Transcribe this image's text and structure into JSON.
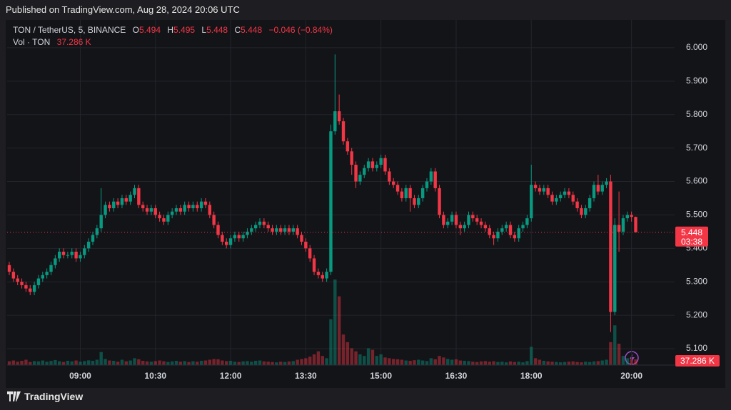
{
  "header": {
    "published": "Published on TradingView.com, Aug 28, 2024 20:06 UTC",
    "footer": "TradingView"
  },
  "chart_data": {
    "type": "candlestick",
    "symbol": "TON / TetherUS, 5, BINANCE",
    "legend_labels": {
      "open": "O",
      "high": "H",
      "low": "L",
      "close": "C"
    },
    "change": "−0.046 (−0.84%)",
    "volume_name": "Vol · TON",
    "volume_last_label": "37.286 K",
    "countdown": "03:38",
    "up_color": "#089981",
    "down_color": "#f23645",
    "grid": true,
    "ylim": [
      5.051,
      6.083
    ],
    "yticks": [
      {
        "value": 5.1,
        "label": "5.100"
      },
      {
        "value": 5.2,
        "label": "5.200"
      },
      {
        "value": 5.3,
        "label": "5.300"
      },
      {
        "value": 5.4,
        "label": "5.400"
      },
      {
        "value": 5.5,
        "label": "5.500"
      },
      {
        "value": 5.6,
        "label": "5.600"
      },
      {
        "value": 5.7,
        "label": "5.700"
      },
      {
        "value": 5.8,
        "label": "5.800"
      },
      {
        "value": 5.9,
        "label": "5.900"
      },
      {
        "value": 6.0,
        "label": "6.000"
      }
    ],
    "categories": [
      null,
      null,
      null,
      null,
      null,
      null,
      null,
      null,
      null,
      null,
      null,
      null,
      null,
      null,
      null,
      null,
      null,
      "09:00",
      null,
      null,
      null,
      null,
      null,
      null,
      null,
      null,
      null,
      null,
      null,
      null,
      null,
      null,
      null,
      null,
      null,
      "10:30",
      null,
      null,
      null,
      null,
      null,
      null,
      null,
      null,
      null,
      null,
      null,
      null,
      null,
      null,
      null,
      null,
      null,
      "12:00",
      null,
      null,
      null,
      null,
      null,
      null,
      null,
      null,
      null,
      null,
      null,
      null,
      null,
      null,
      null,
      null,
      null,
      "13:30",
      null,
      null,
      null,
      null,
      null,
      null,
      null,
      null,
      null,
      null,
      null,
      null,
      null,
      null,
      null,
      null,
      null,
      "15:00",
      null,
      null,
      null,
      null,
      null,
      null,
      null,
      null,
      null,
      null,
      null,
      null,
      null,
      null,
      null,
      null,
      null,
      "16:30",
      null,
      null,
      null,
      null,
      null,
      null,
      null,
      null,
      null,
      null,
      null,
      null,
      null,
      null,
      null,
      null,
      null,
      "18:00",
      null,
      null,
      null,
      null,
      null,
      null,
      null,
      null,
      null,
      null,
      null,
      null,
      null,
      null,
      null,
      null,
      null,
      null,
      null,
      null,
      null,
      null,
      null,
      "20:00",
      null
    ],
    "open": [
      5.35,
      5.33,
      5.31,
      5.3,
      5.29,
      5.28,
      5.27,
      5.29,
      5.31,
      5.32,
      5.33,
      5.35,
      5.37,
      5.39,
      5.38,
      5.38,
      5.39,
      5.37,
      5.38,
      5.4,
      5.42,
      5.44,
      5.46,
      5.5,
      5.53,
      5.52,
      5.54,
      5.53,
      5.55,
      5.54,
      5.56,
      5.58,
      5.53,
      5.52,
      5.51,
      5.52,
      5.5,
      5.49,
      5.48,
      5.5,
      5.51,
      5.52,
      5.51,
      5.53,
      5.52,
      5.53,
      5.52,
      5.54,
      5.53,
      5.5,
      5.47,
      5.44,
      5.42,
      5.41,
      5.43,
      5.44,
      5.43,
      5.44,
      5.45,
      5.46,
      5.47,
      5.48,
      5.47,
      5.46,
      5.45,
      5.46,
      5.45,
      5.46,
      5.45,
      5.46,
      5.44,
      5.42,
      5.4,
      5.37,
      5.33,
      5.32,
      5.31,
      5.33,
      5.75,
      5.81,
      5.78,
      5.72,
      5.69,
      5.65,
      5.6,
      5.62,
      5.64,
      5.66,
      5.64,
      5.65,
      5.67,
      5.63,
      5.6,
      5.59,
      5.57,
      5.55,
      5.58,
      5.55,
      5.53,
      5.55,
      5.58,
      5.6,
      5.63,
      5.58,
      5.5,
      5.47,
      5.48,
      5.5,
      5.47,
      5.46,
      5.47,
      5.5,
      5.49,
      5.48,
      5.47,
      5.46,
      5.44,
      5.43,
      5.45,
      5.46,
      5.47,
      5.44,
      5.43,
      5.46,
      5.47,
      5.49,
      5.59,
      5.58,
      5.57,
      5.58,
      5.56,
      5.54,
      5.55,
      5.56,
      5.57,
      5.56,
      5.54,
      5.52,
      5.5,
      5.52,
      5.55,
      5.59,
      5.57,
      5.59,
      5.6,
      5.21,
      5.47,
      5.45,
      5.49,
      5.5,
      5.494
    ],
    "high": [
      5.36,
      5.34,
      5.32,
      5.31,
      5.3,
      5.29,
      5.3,
      5.32,
      5.33,
      5.34,
      5.36,
      5.38,
      5.4,
      5.4,
      5.39,
      5.4,
      5.4,
      5.39,
      5.41,
      5.43,
      5.45,
      5.47,
      5.58,
      5.54,
      5.54,
      5.55,
      5.55,
      5.56,
      5.56,
      5.57,
      5.59,
      5.59,
      5.54,
      5.53,
      5.53,
      5.53,
      5.51,
      5.5,
      5.51,
      5.52,
      5.53,
      5.53,
      5.54,
      5.54,
      5.54,
      5.54,
      5.55,
      5.55,
      5.54,
      5.51,
      5.48,
      5.45,
      5.43,
      5.44,
      5.45,
      5.45,
      5.45,
      5.46,
      5.47,
      5.48,
      5.49,
      5.49,
      5.48,
      5.47,
      5.47,
      5.47,
      5.47,
      5.47,
      5.47,
      5.47,
      5.45,
      5.43,
      5.41,
      5.38,
      5.34,
      5.33,
      5.34,
      5.77,
      5.98,
      5.86,
      5.79,
      5.73,
      5.7,
      5.66,
      5.63,
      5.65,
      5.67,
      5.67,
      5.66,
      5.68,
      5.68,
      5.64,
      5.61,
      5.6,
      5.58,
      5.59,
      5.59,
      5.56,
      5.56,
      5.59,
      5.61,
      5.64,
      5.64,
      5.59,
      5.51,
      5.49,
      5.51,
      5.51,
      5.48,
      5.48,
      5.51,
      5.51,
      5.5,
      5.49,
      5.48,
      5.47,
      5.45,
      5.46,
      5.47,
      5.48,
      5.48,
      5.45,
      5.47,
      5.48,
      5.5,
      5.65,
      5.6,
      5.59,
      5.59,
      5.59,
      5.57,
      5.56,
      5.57,
      5.58,
      5.58,
      5.57,
      5.55,
      5.53,
      5.53,
      5.56,
      5.6,
      5.62,
      5.6,
      5.61,
      5.62,
      5.49,
      5.57,
      5.5,
      5.51,
      5.51,
      5.495
    ],
    "low": [
      5.32,
      5.3,
      5.29,
      5.28,
      5.27,
      5.26,
      5.26,
      5.28,
      5.3,
      5.31,
      5.32,
      5.34,
      5.36,
      5.37,
      5.37,
      5.37,
      5.36,
      5.36,
      5.37,
      5.39,
      5.41,
      5.43,
      5.45,
      5.49,
      5.51,
      5.51,
      5.52,
      5.52,
      5.53,
      5.53,
      5.55,
      5.52,
      5.51,
      5.5,
      5.5,
      5.49,
      5.48,
      5.47,
      5.47,
      5.49,
      5.5,
      5.5,
      5.5,
      5.51,
      5.51,
      5.51,
      5.51,
      5.52,
      5.49,
      5.46,
      5.43,
      5.41,
      5.4,
      5.4,
      5.42,
      5.42,
      5.42,
      5.43,
      5.44,
      5.45,
      5.46,
      5.46,
      5.45,
      5.44,
      5.44,
      5.44,
      5.44,
      5.44,
      5.44,
      5.43,
      5.41,
      5.39,
      5.36,
      5.32,
      5.31,
      5.3,
      5.3,
      5.32,
      5.74,
      5.77,
      5.71,
      5.68,
      5.62,
      5.58,
      5.59,
      5.61,
      5.63,
      5.63,
      5.63,
      5.64,
      5.62,
      5.59,
      5.58,
      5.56,
      5.54,
      5.54,
      5.51,
      5.52,
      5.52,
      5.54,
      5.57,
      5.59,
      5.57,
      5.49,
      5.46,
      5.46,
      5.47,
      5.46,
      5.44,
      5.45,
      5.46,
      5.48,
      5.47,
      5.46,
      5.45,
      5.43,
      5.41,
      5.42,
      5.44,
      5.45,
      5.43,
      5.42,
      5.42,
      5.45,
      5.46,
      5.48,
      5.57,
      5.56,
      5.56,
      5.55,
      5.53,
      5.53,
      5.54,
      5.55,
      5.55,
      5.53,
      5.51,
      5.49,
      5.49,
      5.51,
      5.54,
      5.56,
      5.56,
      5.58,
      5.15,
      5.2,
      5.39,
      5.44,
      5.48,
      5.48,
      5.448
    ],
    "close": [
      5.33,
      5.31,
      5.3,
      5.29,
      5.28,
      5.27,
      5.29,
      5.31,
      5.32,
      5.33,
      5.35,
      5.37,
      5.39,
      5.38,
      5.38,
      5.39,
      5.37,
      5.38,
      5.4,
      5.42,
      5.44,
      5.46,
      5.5,
      5.53,
      5.52,
      5.54,
      5.53,
      5.55,
      5.54,
      5.56,
      5.58,
      5.53,
      5.52,
      5.51,
      5.52,
      5.5,
      5.49,
      5.48,
      5.5,
      5.51,
      5.52,
      5.51,
      5.53,
      5.52,
      5.53,
      5.52,
      5.54,
      5.53,
      5.5,
      5.47,
      5.44,
      5.42,
      5.41,
      5.43,
      5.44,
      5.43,
      5.44,
      5.45,
      5.46,
      5.47,
      5.48,
      5.47,
      5.46,
      5.45,
      5.46,
      5.45,
      5.46,
      5.45,
      5.46,
      5.44,
      5.42,
      5.4,
      5.37,
      5.33,
      5.32,
      5.31,
      5.33,
      5.75,
      5.81,
      5.78,
      5.72,
      5.69,
      5.65,
      5.6,
      5.62,
      5.64,
      5.66,
      5.64,
      5.65,
      5.67,
      5.63,
      5.6,
      5.59,
      5.57,
      5.55,
      5.58,
      5.55,
      5.53,
      5.55,
      5.58,
      5.6,
      5.63,
      5.58,
      5.5,
      5.47,
      5.48,
      5.5,
      5.47,
      5.46,
      5.47,
      5.5,
      5.49,
      5.48,
      5.47,
      5.46,
      5.44,
      5.43,
      5.45,
      5.46,
      5.47,
      5.44,
      5.43,
      5.46,
      5.47,
      5.49,
      5.59,
      5.58,
      5.57,
      5.58,
      5.56,
      5.54,
      5.55,
      5.56,
      5.57,
      5.56,
      5.54,
      5.52,
      5.5,
      5.52,
      5.55,
      5.59,
      5.57,
      5.59,
      5.6,
      5.21,
      5.47,
      5.45,
      5.49,
      5.5,
      5.494,
      5.448
    ],
    "volume": [
      25,
      30,
      22,
      28,
      35,
      20,
      26,
      24,
      30,
      22,
      27,
      33,
      25,
      20,
      28,
      24,
      30,
      22,
      26,
      31,
      28,
      35,
      85,
      40,
      30,
      28,
      22,
      35,
      25,
      30,
      45,
      38,
      28,
      24,
      22,
      26,
      30,
      25,
      20,
      24,
      28,
      22,
      26,
      20,
      25,
      22,
      28,
      30,
      35,
      40,
      38,
      30,
      26,
      28,
      22,
      20,
      24,
      26,
      22,
      28,
      30,
      24,
      22,
      20,
      18,
      22,
      20,
      24,
      26,
      35,
      40,
      45,
      55,
      70,
      90,
      60,
      45,
      300,
      560,
      450,
      200,
      150,
      110,
      90,
      70,
      60,
      110,
      100,
      60,
      70,
      50,
      45,
      40,
      38,
      35,
      30,
      28,
      32,
      35,
      30,
      26,
      45,
      38,
      60,
      50,
      40,
      35,
      38,
      30,
      28,
      26,
      22,
      20,
      24,
      26,
      22,
      25,
      20,
      22,
      18,
      24,
      20,
      22,
      18,
      26,
      120,
      45,
      35,
      28,
      24,
      22,
      20,
      18,
      20,
      22,
      24,
      20,
      18,
      22,
      20,
      24,
      26,
      30,
      35,
      150,
      260,
      140,
      60,
      45,
      40,
      37.286
    ]
  }
}
